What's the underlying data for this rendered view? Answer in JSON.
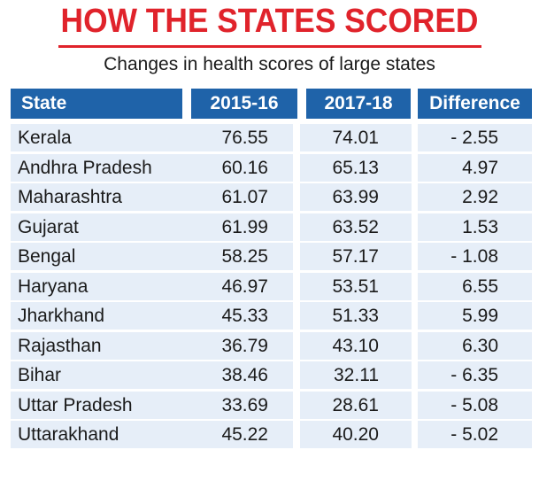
{
  "chart_data": {
    "type": "table",
    "title": "HOW THE STATES SCORED",
    "subtitle": "Changes in health scores of large states",
    "columns": [
      "State",
      "2015-16",
      "2017-18",
      "Difference"
    ],
    "rows": [
      {
        "state": "Kerala",
        "y2015_16": "76.55",
        "y2017_18": "74.01",
        "difference": "- 2.55"
      },
      {
        "state": "Andhra Pradesh",
        "y2015_16": "60.16",
        "y2017_18": "65.13",
        "difference": "4.97"
      },
      {
        "state": "Maharashtra",
        "y2015_16": "61.07",
        "y2017_18": "63.99",
        "difference": "2.92"
      },
      {
        "state": "Gujarat",
        "y2015_16": "61.99",
        "y2017_18": "63.52",
        "difference": "1.53"
      },
      {
        "state": "Bengal",
        "y2015_16": "58.25",
        "y2017_18": "57.17",
        "difference": "- 1.08"
      },
      {
        "state": "Haryana",
        "y2015_16": "46.97",
        "y2017_18": "53.51",
        "difference": "6.55"
      },
      {
        "state": "Jharkhand",
        "y2015_16": "45.33",
        "y2017_18": "51.33",
        "difference": "5.99"
      },
      {
        "state": "Rajasthan",
        "y2015_16": "36.79",
        "y2017_18": "43.10",
        "difference": "6.30"
      },
      {
        "state": "Bihar",
        "y2015_16": "38.46",
        "y2017_18": "32.11",
        "difference": "- 6.35"
      },
      {
        "state": "Uttar Pradesh",
        "y2015_16": "33.69",
        "y2017_18": "28.61",
        "difference": "- 5.08"
      },
      {
        "state": "Uttarakhand",
        "y2015_16": "45.22",
        "y2017_18": "40.20",
        "difference": "- 5.02"
      }
    ]
  },
  "colors": {
    "title": "#e0232b",
    "header_bg": "#1f63a9",
    "row_bg": "#e6eef8"
  }
}
